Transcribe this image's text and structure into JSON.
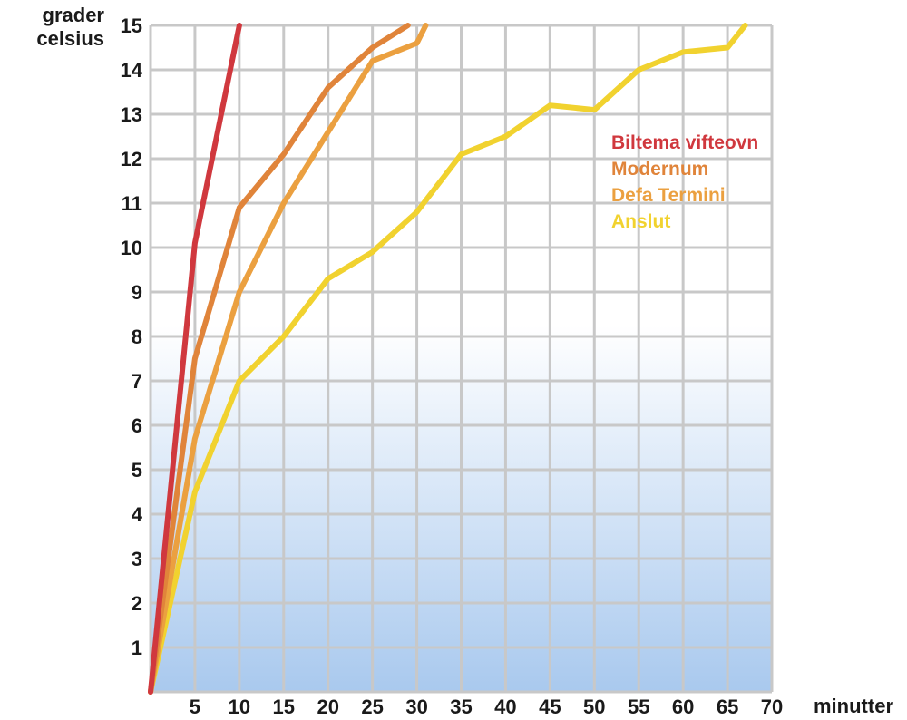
{
  "chart_data": {
    "type": "line",
    "ylabel_line1": "grader",
    "ylabel_line2": "celsius",
    "xlabel": "minutter",
    "xlim": [
      0,
      70
    ],
    "ylim": [
      0,
      15
    ],
    "x_ticks": [
      5,
      10,
      15,
      20,
      25,
      30,
      35,
      40,
      45,
      50,
      55,
      60,
      65,
      70
    ],
    "y_ticks": [
      1,
      2,
      3,
      4,
      5,
      6,
      7,
      8,
      9,
      10,
      11,
      12,
      13,
      14,
      15
    ],
    "grid": true,
    "legend_position": "upper-right inside plot",
    "series": [
      {
        "name": "Biltema vifteovn",
        "color": "#d0383e",
        "points": [
          [
            0,
            0
          ],
          [
            5,
            10.1
          ],
          [
            10,
            15
          ]
        ]
      },
      {
        "name": "Modernum",
        "color": "#e0843a",
        "points": [
          [
            0,
            0
          ],
          [
            5,
            7.5
          ],
          [
            10,
            10.9
          ],
          [
            15,
            12.1
          ],
          [
            20,
            13.6
          ],
          [
            25,
            14.5
          ],
          [
            29,
            15
          ]
        ]
      },
      {
        "name": "Defa Termini",
        "color": "#eba040",
        "points": [
          [
            0,
            0
          ],
          [
            5,
            5.7
          ],
          [
            10,
            9
          ],
          [
            15,
            11
          ],
          [
            20,
            12.6
          ],
          [
            25,
            14.2
          ],
          [
            30,
            14.6
          ],
          [
            31,
            15
          ]
        ]
      },
      {
        "name": "Anslut",
        "color": "#f1d22f",
        "points": [
          [
            0,
            0
          ],
          [
            5,
            4.5
          ],
          [
            10,
            7
          ],
          [
            15,
            8
          ],
          [
            20,
            9.3
          ],
          [
            25,
            9.9
          ],
          [
            30,
            10.8
          ],
          [
            35,
            12.1
          ],
          [
            40,
            12.5
          ],
          [
            45,
            13.2
          ],
          [
            50,
            13.1
          ],
          [
            55,
            14
          ],
          [
            60,
            14.4
          ],
          [
            65,
            14.5
          ],
          [
            67,
            15
          ]
        ]
      }
    ]
  }
}
